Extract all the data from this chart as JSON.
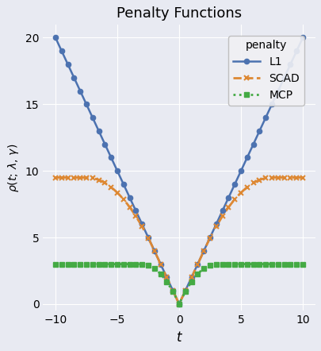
{
  "title": "Penalty Functions",
  "xlabel": "$t$",
  "ylabel": "$\\rho(t;\\,\\lambda,\\,\\gamma)$",
  "xlim": [
    -11,
    11
  ],
  "ylim": [
    -0.5,
    21
  ],
  "lambda": 2.0,
  "gamma_scad": 3.75,
  "gamma_mcp": 1.5,
  "background_color": "#e8eaf2",
  "l1_color": "#4c72b0",
  "scad_color": "#dd8833",
  "mcp_color": "#44aa44",
  "legend_title": "penalty",
  "legend_labels": [
    "L1",
    "SCAD",
    "MCP"
  ]
}
